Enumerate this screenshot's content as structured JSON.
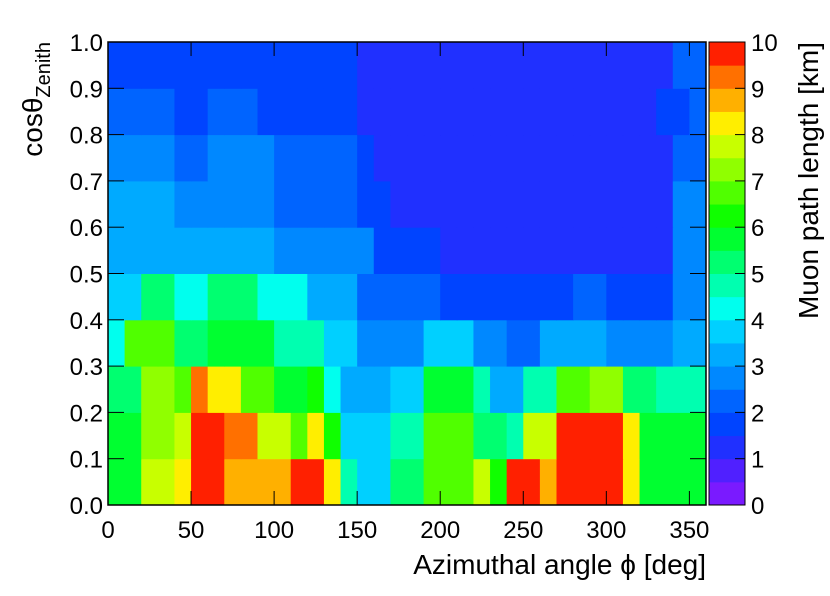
{
  "chart_data": {
    "type": "heatmap",
    "x_label": "Azimuthal angle ϕ [deg]",
    "y_label": "cosθ",
    "y_label_sub": "Zenith",
    "colorbar_label": "Muon path length [km]",
    "xbins": [
      0,
      10,
      20,
      30,
      40,
      50,
      60,
      70,
      80,
      90,
      100,
      110,
      120,
      130,
      140,
      150,
      160,
      170,
      180,
      190,
      200,
      210,
      220,
      230,
      240,
      250,
      260,
      270,
      280,
      290,
      300,
      310,
      320,
      330,
      340,
      350,
      360
    ],
    "ybins": [
      0,
      0.1,
      0.2,
      0.3,
      0.4,
      0.5,
      0.6,
      0.7,
      0.8,
      0.9,
      1
    ],
    "z": [
      [
        5.5,
        5.5,
        7.5,
        7.5,
        8,
        9.8,
        9.8,
        8.5,
        8.5,
        8.5,
        8.5,
        9.8,
        9.8,
        8,
        4.5,
        3.8,
        3.8,
        5,
        5,
        6.5,
        6.5,
        6.5,
        7.5,
        6,
        9.5,
        9.5,
        8.5,
        9.8,
        9.8,
        9.8,
        9.8,
        8,
        5.5,
        5.5,
        5.5,
        5.5
      ],
      [
        5.5,
        5.5,
        7,
        7,
        7.5,
        9.8,
        9.8,
        9,
        9,
        7.5,
        7.5,
        6.5,
        8,
        6,
        3.5,
        3.5,
        3.5,
        4.5,
        4.5,
        6.5,
        6.5,
        6.5,
        5,
        5,
        4.5,
        7.5,
        7.5,
        9.8,
        9.8,
        9.8,
        9.8,
        8,
        5.5,
        5.5,
        5.5,
        5.5
      ],
      [
        5,
        5,
        7,
        7,
        6.5,
        9,
        8,
        8,
        6.5,
        6.5,
        5.5,
        5.5,
        6,
        4,
        3.2,
        3,
        3,
        3.5,
        3.5,
        5.5,
        5.5,
        5.5,
        4.5,
        3.3,
        3.3,
        4.5,
        4.5,
        6.5,
        6.5,
        7,
        7,
        5,
        5,
        4.5,
        4.5,
        4.5
      ],
      [
        4,
        6.5,
        6.5,
        6.5,
        5,
        5,
        5.5,
        5.5,
        5.5,
        5.5,
        4.5,
        4.5,
        4.5,
        3.5,
        3.5,
        2.5,
        2.5,
        2.8,
        2.8,
        3.5,
        3.5,
        3.5,
        2.7,
        2.7,
        2.3,
        2.3,
        3.2,
        3.2,
        3.2,
        3.2,
        2.7,
        2.7,
        2.7,
        2.7,
        3.2,
        3.2
      ],
      [
        3.5,
        3.5,
        5,
        5,
        4,
        4,
        5,
        5,
        5,
        4,
        4,
        4,
        3,
        3,
        3,
        2.3,
        2.3,
        2.3,
        2,
        2,
        1.8,
        1.8,
        1.8,
        1.7,
        1.7,
        1.7,
        1.7,
        1.7,
        2,
        2,
        1.7,
        1.7,
        1.7,
        1.7,
        2.5,
        2.5
      ],
      [
        3.3,
        3.3,
        3.3,
        3.3,
        3.3,
        3,
        3.2,
        3.2,
        3.2,
        3.2,
        2.5,
        2.5,
        2.5,
        2.5,
        2.5,
        2.5,
        1.7,
        1.7,
        1.7,
        1.7,
        1.3,
        1.3,
        1.3,
        1.3,
        1.3,
        1.3,
        1.3,
        1.3,
        1.3,
        1.3,
        1.3,
        1.3,
        1.3,
        1.3,
        2.8,
        2.8
      ],
      [
        3,
        3,
        3,
        3,
        2.5,
        2.5,
        2.8,
        2.8,
        2.8,
        2.8,
        2.2,
        2.2,
        2.2,
        2.2,
        2.3,
        1.8,
        1.8,
        1.3,
        1.3,
        1.3,
        1.3,
        1.3,
        1.3,
        1.3,
        1.3,
        1.3,
        1.3,
        1.3,
        1.3,
        1.3,
        1.3,
        1.3,
        1.3,
        1.3,
        2.5,
        2.5
      ],
      [
        2.7,
        2.7,
        2.7,
        2.7,
        2.2,
        2.2,
        2.7,
        2.7,
        2.7,
        2.7,
        2,
        2,
        2,
        2,
        2,
        1.8,
        1.3,
        1.3,
        1.3,
        1.3,
        1.3,
        1.3,
        1.3,
        1.3,
        1.3,
        1.3,
        1.3,
        1.3,
        1.3,
        1.3,
        1.3,
        1.3,
        1.3,
        1.3,
        2.2,
        2.2
      ],
      [
        2.2,
        2.2,
        2.2,
        2.2,
        1.8,
        1.8,
        2.2,
        2.2,
        2.2,
        1.8,
        1.8,
        1.8,
        1.8,
        1.8,
        1.8,
        1.3,
        1.3,
        1.3,
        1.3,
        1.3,
        1.3,
        1.3,
        1.3,
        1.3,
        1.3,
        1.3,
        1.3,
        1.3,
        1.3,
        1.3,
        1.3,
        1.3,
        1.3,
        1.8,
        1.8,
        2.2
      ],
      [
        1.8,
        1.8,
        1.8,
        1.8,
        1.8,
        1.8,
        1.8,
        1.8,
        1.8,
        1.8,
        1.8,
        1.8,
        1.8,
        1.8,
        1.8,
        1.3,
        1.3,
        1.3,
        1.3,
        1.3,
        1.3,
        1.3,
        1.3,
        1.3,
        1.3,
        1.3,
        1.3,
        1.3,
        1.3,
        1.3,
        1.3,
        1.3,
        1.3,
        1.3,
        2,
        2
      ]
    ],
    "xlim": [
      0,
      360
    ],
    "xticks": [
      0,
      50,
      100,
      150,
      200,
      250,
      300,
      350
    ],
    "ylim": [
      0,
      1
    ],
    "yticks": [
      {
        "value": 0,
        "label": "0.0"
      },
      0.1,
      0.2,
      0.3,
      0.4,
      0.5,
      0.6,
      0.7,
      0.8,
      0.9,
      {
        "value": 1,
        "label": "1.0"
      }
    ],
    "zlim": [
      0,
      10
    ],
    "zticks": [
      0,
      1,
      2,
      3,
      4,
      5,
      6,
      7,
      8,
      9,
      10
    ],
    "palette": [
      "#7a1aff",
      "#5020ff",
      "#2030ff",
      "#0044ff",
      "#0064ff",
      "#0088ff",
      "#00aaff",
      "#00d0ff",
      "#00ffee",
      "#00ffb0",
      "#00ff70",
      "#00ff30",
      "#10ff00",
      "#50ff00",
      "#90ff00",
      "#c8ff00",
      "#ffee00",
      "#ffb000",
      "#ff7000",
      "#ff2000"
    ]
  }
}
